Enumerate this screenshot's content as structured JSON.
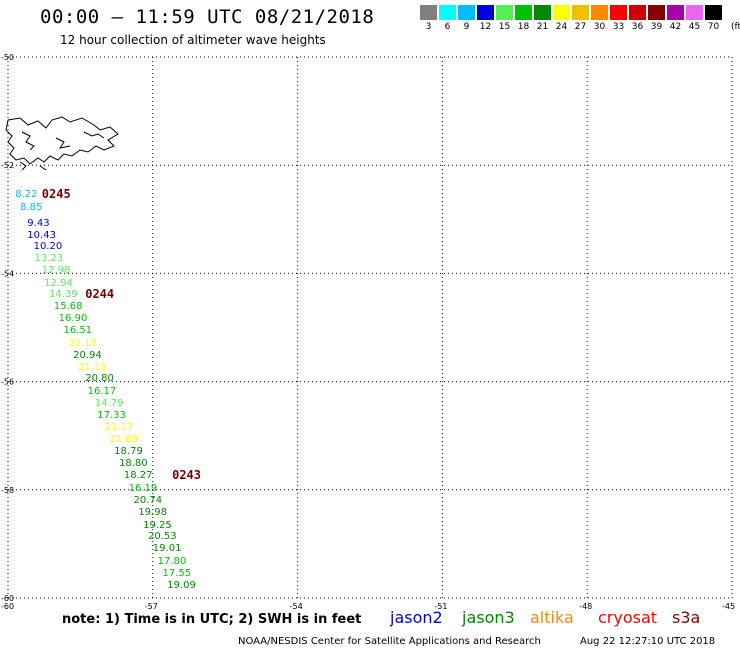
{
  "title": "00:00 – 11:59 UTC 08/21/2018",
  "subtitle": "12 hour collection of altimeter wave heights",
  "legend": {
    "unit": "(ft)",
    "bins": [
      {
        "label": "3",
        "color": "#808080"
      },
      {
        "label": "6",
        "color": "#00ffff"
      },
      {
        "label": "9",
        "color": "#00bcff"
      },
      {
        "label": "12",
        "color": "#0000e0"
      },
      {
        "label": "15",
        "color": "#55ee55"
      },
      {
        "label": "18",
        "color": "#00c000"
      },
      {
        "label": "21",
        "color": "#008800"
      },
      {
        "label": "24",
        "color": "#ffff00"
      },
      {
        "label": "27",
        "color": "#f0c000"
      },
      {
        "label": "30",
        "color": "#ff8800"
      },
      {
        "label": "33",
        "color": "#ff0000"
      },
      {
        "label": "36",
        "color": "#cc0000"
      },
      {
        "label": "39",
        "color": "#880000"
      },
      {
        "label": "42",
        "color": "#aa00aa"
      },
      {
        "label": "45",
        "color": "#ee66ee"
      },
      {
        "label": "70",
        "color": "#000000"
      }
    ]
  },
  "map": {
    "lat_labels": [
      "-50",
      "-52",
      "-54",
      "-56",
      "-58",
      "-60"
    ],
    "lon_labels": [
      "-60",
      "-57",
      "-54",
      "-51",
      "-48",
      "-45"
    ]
  },
  "observations": [
    {
      "text": "8.22",
      "lat": -52.55,
      "lon": -59.85,
      "color": "#00bcff"
    },
    {
      "text": "8.85",
      "lat": -52.8,
      "lon": -59.75,
      "color": "#00bcff"
    },
    {
      "text": "9.43",
      "lat": -53.08,
      "lon": -59.6,
      "color": "#0000e0"
    },
    {
      "text": "10.43",
      "lat": -53.3,
      "lon": -59.6,
      "color": "#0000e0"
    },
    {
      "text": "10.20",
      "lat": -53.52,
      "lon": -59.47,
      "color": "#0000e0"
    },
    {
      "text": "13.23",
      "lat": -53.74,
      "lon": -59.45,
      "color": "#55ee55"
    },
    {
      "text": "12.98",
      "lat": -53.96,
      "lon": -59.3,
      "color": "#55ee55"
    },
    {
      "text": "12.94",
      "lat": -54.2,
      "lon": -59.25,
      "color": "#55ee55"
    },
    {
      "text": "14.39",
      "lat": -54.4,
      "lon": -59.15,
      "color": "#55ee55"
    },
    {
      "text": "15.68",
      "lat": -54.62,
      "lon": -59.05,
      "color": "#00c000"
    },
    {
      "text": "16.90",
      "lat": -54.85,
      "lon": -58.95,
      "color": "#00c000"
    },
    {
      "text": "16.51",
      "lat": -55.07,
      "lon": -58.85,
      "color": "#00c000"
    },
    {
      "text": "22.15",
      "lat": -55.3,
      "lon": -58.75,
      "color": "#ffff00"
    },
    {
      "text": "20.94",
      "lat": -55.52,
      "lon": -58.65,
      "color": "#008800"
    },
    {
      "text": "21.19",
      "lat": -55.74,
      "lon": -58.55,
      "color": "#ffff00"
    },
    {
      "text": "20.80",
      "lat": -55.96,
      "lon": -58.4,
      "color": "#008800"
    },
    {
      "text": "16.17",
      "lat": -56.2,
      "lon": -58.35,
      "color": "#00c000"
    },
    {
      "text": "14.79",
      "lat": -56.41,
      "lon": -58.2,
      "color": "#55ee55"
    },
    {
      "text": "17.33",
      "lat": -56.64,
      "lon": -58.15,
      "color": "#00c000"
    },
    {
      "text": "21.17",
      "lat": -56.86,
      "lon": -58.0,
      "color": "#ffff00"
    },
    {
      "text": "21.89",
      "lat": -57.08,
      "lon": -57.9,
      "color": "#ffff00"
    },
    {
      "text": "18.79",
      "lat": -57.31,
      "lon": -57.8,
      "color": "#008800"
    },
    {
      "text": "18.80",
      "lat": -57.53,
      "lon": -57.7,
      "color": "#008800"
    },
    {
      "text": "18.27",
      "lat": -57.75,
      "lon": -57.6,
      "color": "#008800"
    },
    {
      "text": "16.19",
      "lat": -57.98,
      "lon": -57.5,
      "color": "#00c000"
    },
    {
      "text": "20.74",
      "lat": -58.2,
      "lon": -57.4,
      "color": "#008800"
    },
    {
      "text": "19.98",
      "lat": -58.43,
      "lon": -57.3,
      "color": "#008800"
    },
    {
      "text": "19.25",
      "lat": -58.66,
      "lon": -57.2,
      "color": "#008800"
    },
    {
      "text": "20.53",
      "lat": -58.88,
      "lon": -57.1,
      "color": "#008800"
    },
    {
      "text": "19.01",
      "lat": -59.1,
      "lon": -57.0,
      "color": "#008800"
    },
    {
      "text": "17.80",
      "lat": -59.33,
      "lon": -56.9,
      "color": "#00c000"
    },
    {
      "text": "17.55",
      "lat": -59.55,
      "lon": -56.8,
      "color": "#00c000"
    },
    {
      "text": "19.09",
      "lat": -59.78,
      "lon": -56.7,
      "color": "#008800"
    }
  ],
  "passes": [
    {
      "text": "0245",
      "lat": -52.55,
      "lon": -59.3
    },
    {
      "text": "0244",
      "lat": -54.4,
      "lon": -58.4
    },
    {
      "text": "0243",
      "lat": -57.75,
      "lon": -56.6
    }
  ],
  "note": "note: 1) Time is in UTC; 2) SWH is in feet",
  "satellites": [
    {
      "name": "jason2",
      "color": "#0000e0"
    },
    {
      "name": "jason3",
      "color": "#008800"
    },
    {
      "name": "altika",
      "color": "#ff8800"
    },
    {
      "name": "cryosat",
      "color": "#ff0000"
    },
    {
      "name": "s3a",
      "color": "#880000"
    }
  ],
  "footer": {
    "credit": "NOAA/NESDIS Center for Satellite Applications and Research",
    "timestamp": "Aug 22 12:27:10 UTC 2018"
  }
}
